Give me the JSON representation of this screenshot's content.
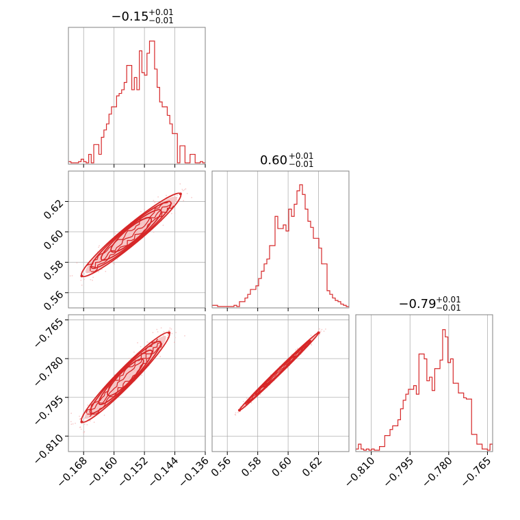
{
  "chart_data": {
    "type": "corner",
    "colors": {
      "main": "#d62728",
      "grid": "#b0b0b0",
      "frame": "#808080",
      "fill": "#f3b6b6"
    },
    "grid": true,
    "parameters": [
      {
        "title_main": "−0.15",
        "title_sup": "+0.01",
        "title_sub": "−0.01",
        "range": [
          -0.172,
          -0.136
        ],
        "ticks": [
          -0.168,
          -0.16,
          -0.152,
          -0.144,
          -0.136
        ],
        "tick_labels": [
          "−0.168",
          "−0.160",
          "−0.152",
          "−0.144",
          "−0.136"
        ],
        "hist": [
          0.01,
          0.0,
          0.0,
          0.0,
          0.01,
          0.03,
          0.01,
          0.0,
          0.07,
          0.0,
          0.15,
          0.15,
          0.07,
          0.21,
          0.27,
          0.32,
          0.4,
          0.46,
          0.46,
          0.55,
          0.57,
          0.6,
          0.66,
          0.8,
          0.8,
          0.6,
          0.7,
          0.6,
          0.92,
          0.74,
          0.72,
          0.9,
          1.0,
          1.0,
          0.77,
          0.62,
          0.5,
          0.46,
          0.46,
          0.39,
          0.32,
          0.24,
          0.24,
          0.0,
          0.14,
          0.14,
          0.0,
          0.0,
          0.07,
          0.07,
          0.0,
          0.0,
          0.01,
          0.0
        ]
      },
      {
        "title_main": "0.60",
        "title_sup": "+0.01",
        "title_sub": "−0.01",
        "range": [
          0.55,
          0.64
        ],
        "ticks": [
          0.56,
          0.58,
          0.6,
          0.62
        ],
        "tick_labels": [
          "0.56",
          "0.58",
          "0.60",
          "0.62"
        ],
        "hist": [
          0.01,
          0.01,
          0.0,
          0.0,
          0.0,
          0.0,
          0.0,
          0.0,
          0.01,
          0.0,
          0.04,
          0.04,
          0.07,
          0.1,
          0.14,
          0.14,
          0.17,
          0.23,
          0.29,
          0.35,
          0.39,
          0.5,
          0.5,
          0.74,
          0.64,
          0.64,
          0.67,
          0.62,
          0.8,
          0.74,
          0.84,
          0.95,
          1.0,
          0.92,
          0.8,
          0.7,
          0.65,
          0.56,
          0.56,
          0.48,
          0.35,
          0.35,
          0.13,
          0.1,
          0.07,
          0.05,
          0.04,
          0.02,
          0.01,
          0.0
        ]
      },
      {
        "title_main": "−0.79",
        "title_sup": "+0.01",
        "title_sub": "−0.01",
        "range": [
          -0.816,
          -0.763
        ],
        "ticks": [
          -0.81,
          -0.795,
          -0.78,
          -0.765
        ],
        "tick_labels": [
          "−0.810",
          "−0.795",
          "−0.780",
          "−0.765"
        ],
        "hist": [
          0.01,
          0.05,
          0.01,
          0.0,
          0.01,
          0.0,
          0.01,
          0.0,
          0.0,
          0.03,
          0.03,
          0.12,
          0.12,
          0.17,
          0.2,
          0.2,
          0.25,
          0.34,
          0.41,
          0.46,
          0.5,
          0.5,
          0.53,
          0.46,
          0.79,
          0.79,
          0.75,
          0.57,
          0.6,
          0.49,
          0.67,
          0.67,
          0.74,
          0.99,
          0.93,
          0.72,
          0.75,
          0.55,
          0.55,
          0.47,
          0.47,
          0.43,
          0.42,
          0.42,
          0.13,
          0.13,
          0.05,
          0.05,
          0.01,
          0.01,
          0.0,
          0.05
        ]
      }
    ],
    "pairs": [
      {
        "row": 1,
        "col": 0,
        "note": "param2 vs param1",
        "x_from": -0.1685,
        "x_to": -0.1425,
        "y_from": 0.571,
        "y_to": 0.625,
        "width": 0.01
      },
      {
        "row": 2,
        "col": 0,
        "note": "param3 vs param1",
        "x_from": -0.1685,
        "x_to": -0.1455,
        "y_from": -0.8045,
        "y_to": -0.77,
        "width": 0.0055
      },
      {
        "row": 2,
        "col": 1,
        "note": "param3 vs param2",
        "x_from": 0.568,
        "x_to": 0.62,
        "y_from": -0.8,
        "y_to": -0.77,
        "width": 0.0016
      }
    ]
  }
}
